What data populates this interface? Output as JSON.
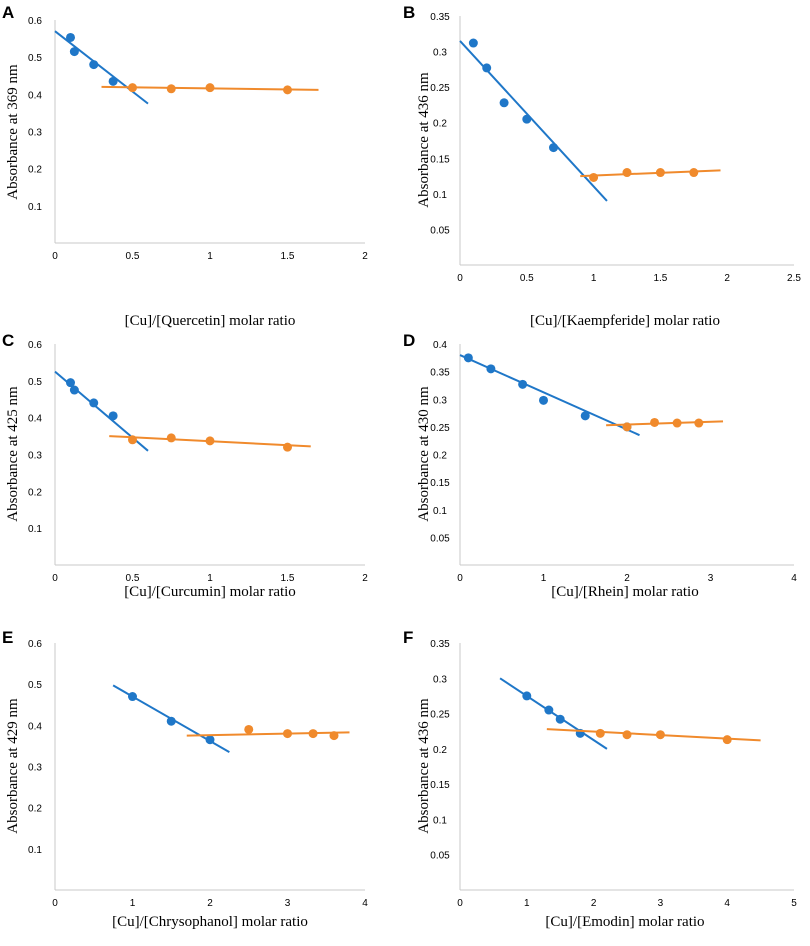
{
  "colors": {
    "blue": "#1f77c8",
    "orange": "#f08a2c",
    "axis": "#c8c8c8"
  },
  "chart_data": [
    {
      "type": "scatter",
      "panel": "A",
      "xlabel": "[Cu]/[Quercetin] molar ratio",
      "ylabel": "Absorbance at 369 nm",
      "xlim": [
        0,
        2
      ],
      "ylim": [
        0,
        0.6
      ],
      "xticks": [
        "0",
        "0.5",
        "1",
        "1.5",
        "2"
      ],
      "yticks": [
        "0.1",
        "0.2",
        "0.3",
        "0.4",
        "0.5",
        "0.6"
      ],
      "series": [
        {
          "name": "blue",
          "x": [
            0.1,
            0.125,
            0.25,
            0.375
          ],
          "y": [
            0.553,
            0.515,
            0.48,
            0.435
          ],
          "fit": [
            [
              0,
              0.57
            ],
            [
              0.6,
              0.375
            ]
          ]
        },
        {
          "name": "orange",
          "x": [
            0.5,
            0.75,
            1.0,
            1.5
          ],
          "y": [
            0.418,
            0.415,
            0.418,
            0.412
          ],
          "fit": [
            [
              0.3,
              0.42
            ],
            [
              1.7,
              0.412
            ]
          ]
        }
      ]
    },
    {
      "type": "scatter",
      "panel": "B",
      "xlabel": "[Cu]/[Kaempferide] molar ratio",
      "ylabel": "Absorbance at 436 nm",
      "xlim": [
        0,
        2.5
      ],
      "ylim": [
        0,
        0.35
      ],
      "xticks": [
        "0",
        "0.5",
        "1",
        "1.5",
        "2",
        "2.5"
      ],
      "yticks": [
        "0.05",
        "0.1",
        "0.15",
        "0.2",
        "0.25",
        "0.3",
        "0.35"
      ],
      "series": [
        {
          "name": "blue",
          "x": [
            0.1,
            0.2,
            0.33,
            0.5,
            0.7
          ],
          "y": [
            0.312,
            0.277,
            0.228,
            0.205,
            0.165
          ],
          "fit": [
            [
              0,
              0.315
            ],
            [
              1.1,
              0.09
            ]
          ]
        },
        {
          "name": "orange",
          "x": [
            1.0,
            1.25,
            1.5,
            1.75
          ],
          "y": [
            0.123,
            0.13,
            0.13,
            0.13
          ],
          "fit": [
            [
              0.9,
              0.125
            ],
            [
              1.95,
              0.133
            ]
          ]
        }
      ]
    },
    {
      "type": "scatter",
      "panel": "C",
      "xlabel": "[Cu]/[Curcumin] molar ratio",
      "ylabel": "Absorbance at 425 nm",
      "xlim": [
        0,
        2
      ],
      "ylim": [
        0,
        0.6
      ],
      "xticks": [
        "0",
        "0.5",
        "1",
        "1.5",
        "2"
      ],
      "yticks": [
        "0.1",
        "0.2",
        "0.3",
        "0.4",
        "0.5",
        "0.6"
      ],
      "series": [
        {
          "name": "blue",
          "x": [
            0.1,
            0.125,
            0.25,
            0.375
          ],
          "y": [
            0.495,
            0.475,
            0.44,
            0.405
          ],
          "fit": [
            [
              0,
              0.525
            ],
            [
              0.6,
              0.31
            ]
          ]
        },
        {
          "name": "orange",
          "x": [
            0.5,
            0.75,
            1.0,
            1.5
          ],
          "y": [
            0.34,
            0.345,
            0.337,
            0.32
          ],
          "fit": [
            [
              0.35,
              0.35
            ],
            [
              1.65,
              0.322
            ]
          ]
        }
      ]
    },
    {
      "type": "scatter",
      "panel": "D",
      "xlabel": "[Cu]/[Rhein] molar ratio",
      "ylabel": "Absorbance at 430 nm",
      "xlim": [
        0,
        4
      ],
      "ylim": [
        0,
        0.4
      ],
      "xticks": [
        "0",
        "1",
        "2",
        "3",
        "4"
      ],
      "yticks": [
        "0.05",
        "0.1",
        "0.15",
        "0.2",
        "0.25",
        "0.3",
        "0.35",
        "0.4"
      ],
      "series": [
        {
          "name": "blue",
          "x": [
            0.1,
            0.37,
            0.75,
            1.0,
            1.5,
            2.0
          ],
          "y": [
            0.375,
            0.355,
            0.327,
            0.298,
            0.27,
            0.25
          ],
          "fit": [
            [
              0,
              0.38
            ],
            [
              2.15,
              0.235
            ]
          ]
        },
        {
          "name": "orange",
          "x": [
            2.0,
            2.33,
            2.6,
            2.86
          ],
          "y": [
            0.25,
            0.258,
            0.257,
            0.257
          ],
          "fit": [
            [
              1.75,
              0.253
            ],
            [
              3.15,
              0.26
            ]
          ]
        }
      ]
    },
    {
      "type": "scatter",
      "panel": "E",
      "xlabel": "[Cu]/[Chrysophanol] molar ratio",
      "ylabel": "Absorbance at 429 nm",
      "xlim": [
        0,
        4
      ],
      "ylim": [
        0,
        0.6
      ],
      "xticks": [
        "0",
        "1",
        "2",
        "3",
        "4"
      ],
      "yticks": [
        "0.1",
        "0.2",
        "0.3",
        "0.4",
        "0.5",
        "0.6"
      ],
      "series": [
        {
          "name": "blue",
          "x": [
            1.0,
            1.5,
            2.0
          ],
          "y": [
            0.47,
            0.41,
            0.365
          ],
          "fit": [
            [
              0.75,
              0.497
            ],
            [
              2.25,
              0.335
            ]
          ]
        },
        {
          "name": "orange",
          "x": [
            2.5,
            3.0,
            3.33,
            3.6
          ],
          "y": [
            0.39,
            0.38,
            0.38,
            0.375
          ],
          "fit": [
            [
              1.7,
              0.375
            ],
            [
              3.8,
              0.383
            ]
          ]
        }
      ]
    },
    {
      "type": "scatter",
      "panel": "F",
      "xlabel": "[Cu]/[Emodin] molar ratio",
      "ylabel": "Absorbance at 436 nm",
      "xlim": [
        0,
        5
      ],
      "ylim": [
        0,
        0.35
      ],
      "xticks": [
        "0",
        "1",
        "2",
        "3",
        "4",
        "5"
      ],
      "yticks": [
        "0.05",
        "0.1",
        "0.15",
        "0.2",
        "0.25",
        "0.3",
        "0.35"
      ],
      "series": [
        {
          "name": "blue",
          "x": [
            1.0,
            1.33,
            1.5,
            1.8
          ],
          "y": [
            0.275,
            0.255,
            0.242,
            0.222
          ],
          "fit": [
            [
              0.6,
              0.3
            ],
            [
              2.2,
              0.2
            ]
          ]
        },
        {
          "name": "orange",
          "x": [
            2.1,
            2.5,
            3.0,
            4.0
          ],
          "y": [
            0.222,
            0.22,
            0.22,
            0.213
          ],
          "fit": [
            [
              1.3,
              0.228
            ],
            [
              4.5,
              0.212
            ]
          ]
        }
      ]
    }
  ]
}
